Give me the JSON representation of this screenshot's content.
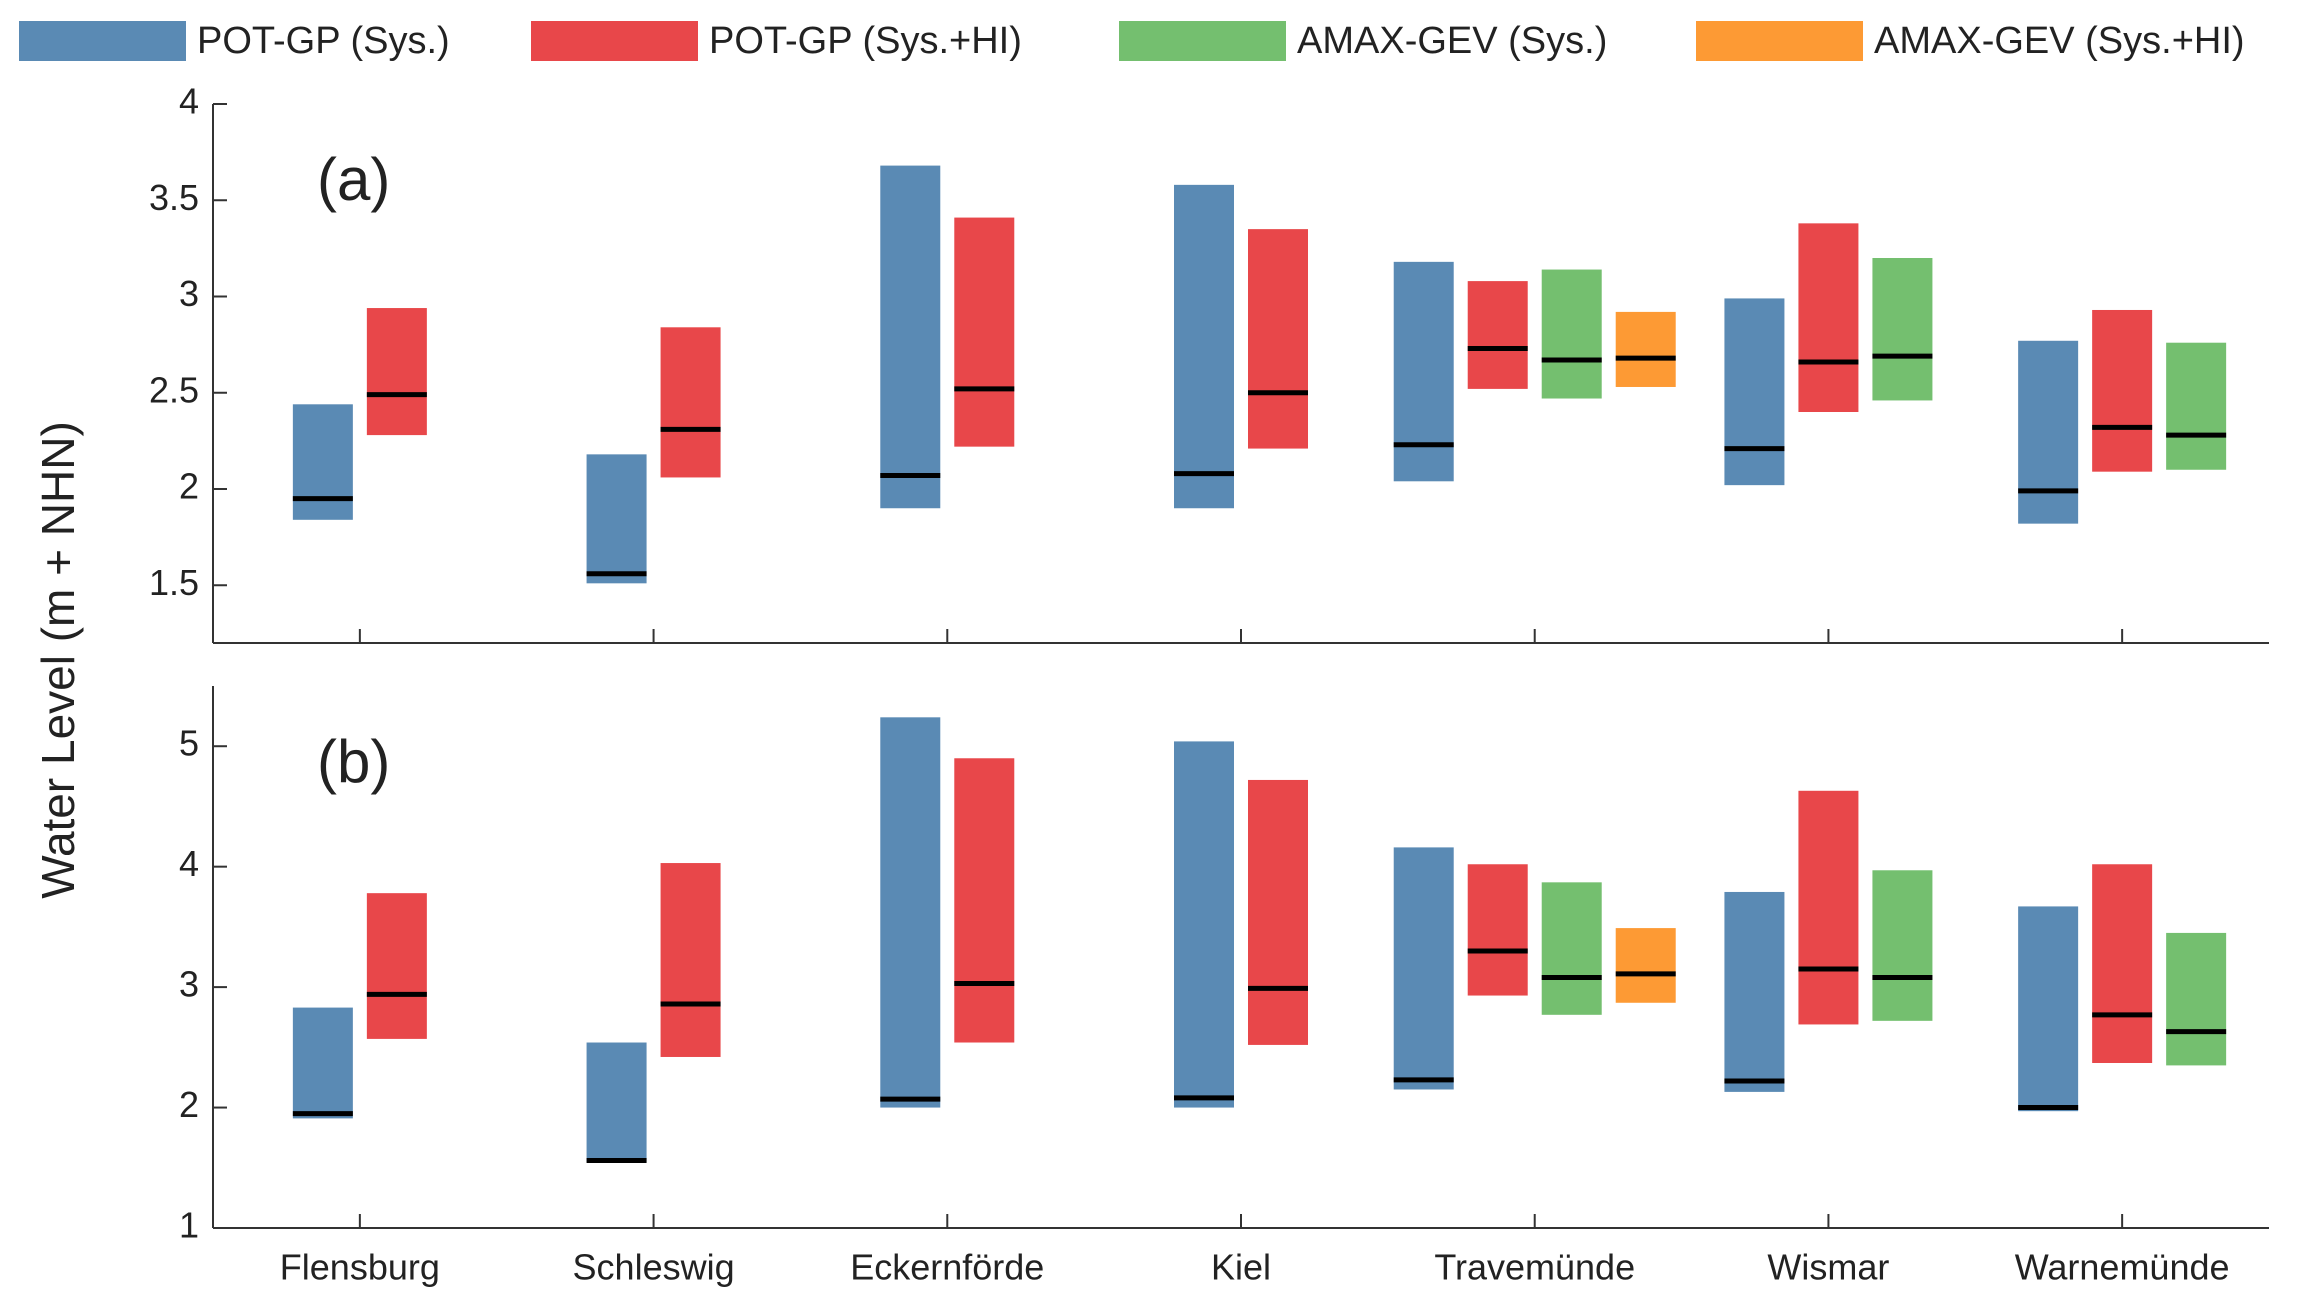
{
  "chart_data": [
    {
      "type": "range-bar",
      "ylabel": "Water Level (m + NHN)",
      "annotation": "(a)",
      "ylim": [
        1.2,
        4
      ],
      "yticks": [
        1.5,
        2,
        2.5,
        3,
        3.5,
        4
      ],
      "series": [
        {
          "name": "POT-GP (Sys.)",
          "color": "#5a8ab4",
          "low": [
            1.84,
            1.51,
            1.9,
            1.9,
            2.04,
            2.02,
            1.82
          ],
          "high": [
            2.44,
            2.18,
            3.68,
            3.58,
            3.18,
            2.99,
            2.77
          ],
          "mid": [
            1.95,
            1.56,
            2.07,
            2.08,
            2.23,
            2.21,
            1.99
          ]
        },
        {
          "name": "POT-GP (Sys.+HI)",
          "color": "#e8474a",
          "low": [
            2.28,
            2.06,
            2.22,
            2.21,
            2.52,
            2.4,
            2.09
          ],
          "high": [
            2.94,
            2.84,
            3.41,
            3.35,
            3.08,
            3.38,
            2.93
          ],
          "mid": [
            2.49,
            2.31,
            2.52,
            2.5,
            2.73,
            2.66,
            2.32
          ]
        },
        {
          "name": "AMAX-GEV (Sys.)",
          "color": "#74bf6f",
          "low": [
            null,
            null,
            null,
            null,
            2.47,
            2.46,
            2.1
          ],
          "high": [
            null,
            null,
            null,
            null,
            3.14,
            3.2,
            2.76
          ],
          "mid": [
            null,
            null,
            null,
            null,
            2.67,
            2.69,
            2.28
          ]
        },
        {
          "name": "AMAX-GEV (Sys.+HI)",
          "color": "#fd9a34",
          "low": [
            null,
            null,
            null,
            null,
            2.53,
            null,
            null
          ],
          "high": [
            null,
            null,
            null,
            null,
            2.92,
            null,
            null
          ],
          "mid": [
            null,
            null,
            null,
            null,
            2.68,
            null,
            null
          ]
        }
      ]
    },
    {
      "type": "range-bar",
      "annotation": "(b)",
      "categories": [
        "Flensburg",
        "Schleswig",
        "Eckernförde",
        "Kiel",
        "Travemünde",
        "Wismar",
        "Warnemünde"
      ],
      "ylim": [
        1,
        5.5
      ],
      "yticks": [
        1,
        2,
        3,
        4,
        5
      ],
      "series": [
        {
          "color": "#5a8ab4",
          "low": [
            1.91,
            1.55,
            2.0,
            2.0,
            2.15,
            2.13,
            1.97
          ],
          "high": [
            2.83,
            2.54,
            5.24,
            5.04,
            4.16,
            3.79,
            3.67
          ],
          "mid": [
            1.95,
            1.56,
            2.07,
            2.08,
            2.23,
            2.22,
            2.0
          ]
        },
        {
          "color": "#e8474a",
          "low": [
            2.57,
            2.42,
            2.54,
            2.52,
            2.93,
            2.69,
            2.37
          ],
          "high": [
            3.78,
            4.03,
            4.9,
            4.72,
            4.02,
            4.63,
            4.02
          ],
          "mid": [
            2.94,
            2.86,
            3.03,
            2.99,
            3.3,
            3.15,
            2.77
          ]
        },
        {
          "color": "#74bf6f",
          "low": [
            null,
            null,
            null,
            null,
            2.77,
            2.72,
            2.35
          ],
          "high": [
            null,
            null,
            null,
            null,
            3.87,
            3.97,
            3.45
          ],
          "mid": [
            null,
            null,
            null,
            null,
            3.08,
            3.08,
            2.63
          ]
        },
        {
          "color": "#fd9a34",
          "low": [
            null,
            null,
            null,
            null,
            2.87,
            null,
            null
          ],
          "high": [
            null,
            null,
            null,
            null,
            3.49,
            null,
            null
          ],
          "mid": [
            null,
            null,
            null,
            null,
            3.11,
            null,
            null
          ]
        }
      ]
    }
  ]
}
